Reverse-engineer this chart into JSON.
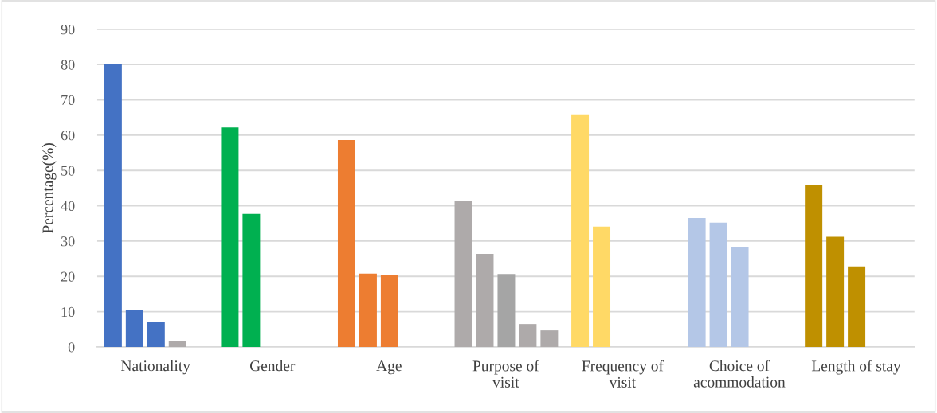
{
  "chart_data": {
    "type": "bar",
    "ylabel": "Percentage(%)",
    "categories": [
      "Nationality",
      "Gender",
      "Age",
      "Purpose of\nvisit",
      "Frequency of\nvisit",
      "Choice of\nacommodation",
      "Length of stay"
    ],
    "series": [
      {
        "colors": [
          "#4472c4",
          "#00b050",
          "#ed7d31",
          "#aeaaaa",
          "#ffd966",
          "#b4c7e7",
          "#bf9000"
        ],
        "values": [
          80.2,
          62.2,
          58.6,
          41.3,
          65.9,
          36.5,
          46.0
        ]
      },
      {
        "colors": [
          "#4472c4",
          "#00b050",
          "#ed7d31",
          "#aeaaaa",
          "#ffd966",
          "#b4c7e7",
          "#bf9000"
        ],
        "values": [
          10.6,
          37.7,
          20.8,
          26.4,
          34.1,
          35.2,
          31.2
        ]
      },
      {
        "colors": [
          "#4472c4",
          "#00b050",
          "#ed7d31",
          "#a5a5a5",
          "#ffd966",
          "#b4c7e7",
          "#bf9000"
        ],
        "values": [
          7.0,
          null,
          20.3,
          20.7,
          null,
          28.2,
          22.8
        ]
      },
      {
        "colors": [
          "#aeaaaa",
          "#00b050",
          "#ed7d31",
          "#aeaaaa",
          "#ffd966",
          "#b4c7e7",
          "#bf9000"
        ],
        "values": [
          1.8,
          null,
          null,
          6.5,
          null,
          null,
          null
        ]
      },
      {
        "colors": [
          "#4472c4",
          "#00b050",
          "#ed7d31",
          "#aeaaaa",
          "#ffd966",
          "#b4c7e7",
          "#bf9000"
        ],
        "values": [
          null,
          null,
          null,
          4.7,
          null,
          null,
          null
        ]
      }
    ],
    "ylim": [
      0,
      90
    ],
    "yticks": [
      0,
      10,
      20,
      30,
      40,
      50,
      60,
      70,
      80,
      90
    ],
    "grid": "y",
    "legend": false
  }
}
